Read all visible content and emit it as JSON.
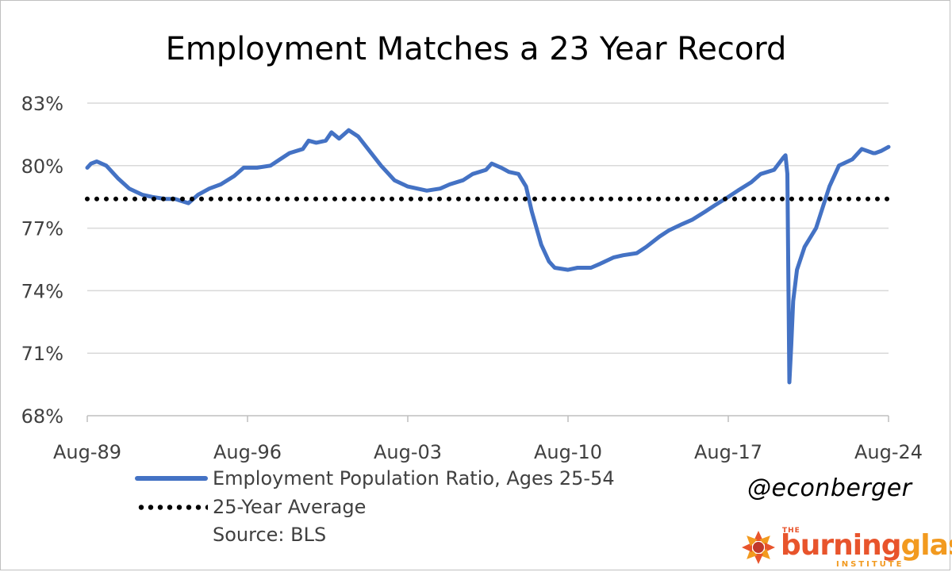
{
  "chart_data": {
    "type": "line",
    "title": "Employment Matches a 23 Year Record",
    "xlabel": "",
    "ylabel": "",
    "x_range": [
      "Aug-89",
      "Aug-24"
    ],
    "x_ticks": [
      "Aug-89",
      "Aug-96",
      "Aug-03",
      "Aug-10",
      "Aug-17",
      "Aug-24"
    ],
    "y_ticks": [
      "68%",
      "71%",
      "74%",
      "77%",
      "80%",
      "83%"
    ],
    "ylim": [
      68,
      83
    ],
    "grid": "horizontal",
    "legend_position": "bottom-left",
    "series": [
      {
        "name": "Employment Population Ratio, Ages 25-54",
        "color": "#4472c4",
        "style": "solid",
        "points": [
          [
            "1989-08",
            79.9
          ],
          [
            "1989-10",
            80.1
          ],
          [
            "1990-01",
            80.2
          ],
          [
            "1990-06",
            80.0
          ],
          [
            "1990-12",
            79.4
          ],
          [
            "1991-06",
            78.9
          ],
          [
            "1992-01",
            78.6
          ],
          [
            "1992-06",
            78.5
          ],
          [
            "1993-01",
            78.4
          ],
          [
            "1993-06",
            78.4
          ],
          [
            "1994-01",
            78.2
          ],
          [
            "1994-06",
            78.6
          ],
          [
            "1994-12",
            78.9
          ],
          [
            "1995-06",
            79.1
          ],
          [
            "1996-01",
            79.5
          ],
          [
            "1996-06",
            79.9
          ],
          [
            "1997-01",
            79.9
          ],
          [
            "1997-08",
            80.0
          ],
          [
            "1998-01",
            80.3
          ],
          [
            "1998-06",
            80.6
          ],
          [
            "1999-01",
            80.8
          ],
          [
            "1999-04",
            81.2
          ],
          [
            "1999-08",
            81.1
          ],
          [
            "2000-01",
            81.2
          ],
          [
            "2000-04",
            81.6
          ],
          [
            "2000-08",
            81.3
          ],
          [
            "2001-01",
            81.7
          ],
          [
            "2001-06",
            81.4
          ],
          [
            "2001-12",
            80.7
          ],
          [
            "2002-06",
            80.0
          ],
          [
            "2003-01",
            79.3
          ],
          [
            "2003-08",
            79.0
          ],
          [
            "2004-01",
            78.9
          ],
          [
            "2004-06",
            78.8
          ],
          [
            "2005-01",
            78.9
          ],
          [
            "2005-06",
            79.1
          ],
          [
            "2006-01",
            79.3
          ],
          [
            "2006-06",
            79.6
          ],
          [
            "2007-01",
            79.8
          ],
          [
            "2007-04",
            80.1
          ],
          [
            "2007-09",
            79.9
          ],
          [
            "2008-01",
            79.7
          ],
          [
            "2008-06",
            79.6
          ],
          [
            "2008-10",
            79.0
          ],
          [
            "2009-01",
            77.8
          ],
          [
            "2009-06",
            76.2
          ],
          [
            "2009-10",
            75.4
          ],
          [
            "2010-01",
            75.1
          ],
          [
            "2010-08",
            75.0
          ],
          [
            "2011-01",
            75.1
          ],
          [
            "2011-08",
            75.1
          ],
          [
            "2012-01",
            75.3
          ],
          [
            "2012-08",
            75.6
          ],
          [
            "2013-01",
            75.7
          ],
          [
            "2013-08",
            75.8
          ],
          [
            "2014-01",
            76.1
          ],
          [
            "2014-08",
            76.6
          ],
          [
            "2015-01",
            76.9
          ],
          [
            "2015-08",
            77.2
          ],
          [
            "2016-01",
            77.4
          ],
          [
            "2016-08",
            77.8
          ],
          [
            "2017-01",
            78.1
          ],
          [
            "2017-08",
            78.5
          ],
          [
            "2018-01",
            78.8
          ],
          [
            "2018-08",
            79.2
          ],
          [
            "2019-01",
            79.6
          ],
          [
            "2019-08",
            79.8
          ],
          [
            "2020-01",
            80.4
          ],
          [
            "2020-02",
            80.5
          ],
          [
            "2020-03",
            79.6
          ],
          [
            "2020-04",
            69.6
          ],
          [
            "2020-05",
            71.4
          ],
          [
            "2020-06",
            73.5
          ],
          [
            "2020-08",
            75.0
          ],
          [
            "2020-12",
            76.1
          ],
          [
            "2021-06",
            77.0
          ],
          [
            "2022-01",
            79.0
          ],
          [
            "2022-06",
            80.0
          ],
          [
            "2023-01",
            80.3
          ],
          [
            "2023-06",
            80.8
          ],
          [
            "2023-12",
            80.6
          ],
          [
            "2024-01",
            80.6
          ],
          [
            "2024-04",
            80.7
          ],
          [
            "2024-08",
            80.9
          ]
        ]
      },
      {
        "name": "25-Year Average",
        "color": "#000000",
        "style": "dotted",
        "points": [
          [
            "1989-08",
            78.4
          ],
          [
            "2024-08",
            78.4
          ]
        ]
      }
    ],
    "annotations": [
      "Source: BLS",
      "@econberger"
    ]
  },
  "legend": {
    "series1_label": "Employment Population Ratio, Ages 25-54",
    "series2_label": "25-Year Average",
    "source": "Source: BLS"
  },
  "handle": "@econberger",
  "logo": {
    "the": "THE",
    "word_part1": "burning",
    "word_part2": "glass",
    "institute": "INSTITUTE",
    "icon": "burst-logo-icon"
  }
}
